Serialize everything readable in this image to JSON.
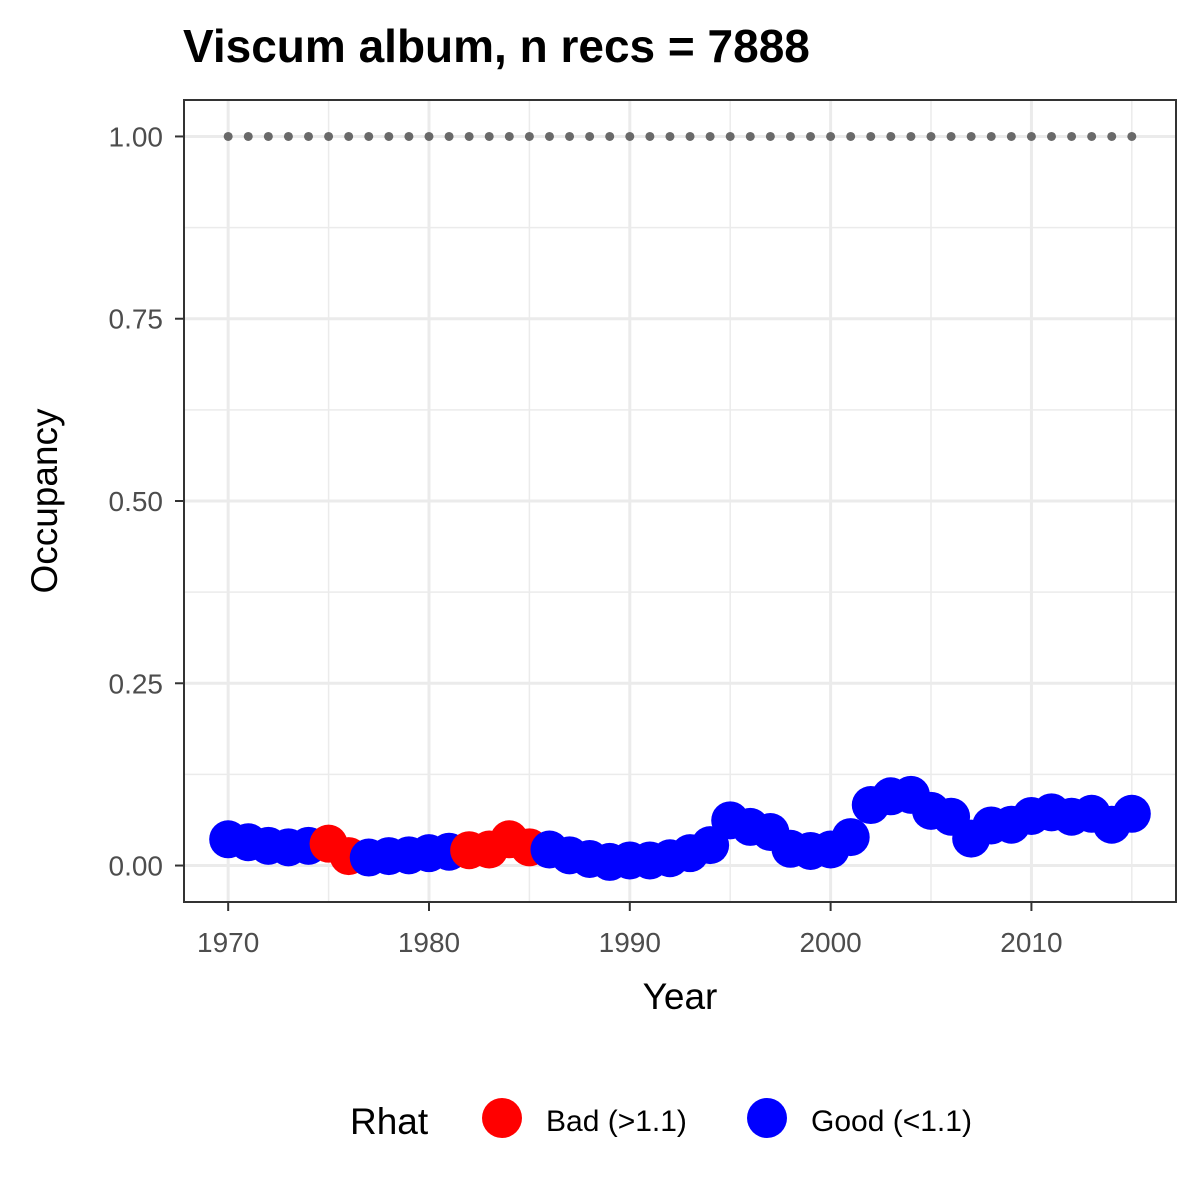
{
  "chart_data": {
    "type": "scatter",
    "title": "Viscum album, n recs = 7888",
    "xlabel": "Year",
    "ylabel": "Occupancy",
    "xlim": [
      1967.8,
      2017.2
    ],
    "ylim": [
      -0.05,
      1.05
    ],
    "x_ticks": [
      1970,
      1980,
      1990,
      2000,
      2010
    ],
    "x_tick_labels": [
      "1970",
      "1980",
      "1990",
      "2000",
      "2010"
    ],
    "y_ticks": [
      0,
      0.25,
      0.5,
      0.75,
      1
    ],
    "y_tick_labels": [
      "0.00",
      "0.25",
      "0.50",
      "0.75",
      "1.00"
    ],
    "grid": true,
    "legend_position": "bottom",
    "legend": {
      "title": "Rhat",
      "entries": [
        {
          "key": "bad",
          "label": "Bad (>1.1)",
          "color": "#ff0000"
        },
        {
          "key": "good",
          "label": "Good (<1.1)",
          "color": "#0000ff"
        }
      ]
    },
    "series": [
      {
        "key": "occupancy",
        "x": [
          1970,
          1971,
          1972,
          1973,
          1974,
          1975,
          1976,
          1977,
          1978,
          1979,
          1980,
          1981,
          1982,
          1983,
          1984,
          1985,
          1986,
          1987,
          1988,
          1989,
          1990,
          1991,
          1992,
          1993,
          1994,
          1995,
          1996,
          1997,
          1998,
          1999,
          2000,
          2001,
          2002,
          2003,
          2004,
          2005,
          2006,
          2007,
          2008,
          2009,
          2010,
          2011,
          2012,
          2013,
          2014,
          2015
        ],
        "y": [
          0.036,
          0.032,
          0.027,
          0.025,
          0.027,
          0.03,
          0.013,
          0.011,
          0.013,
          0.014,
          0.017,
          0.019,
          0.021,
          0.022,
          0.036,
          0.025,
          0.022,
          0.014,
          0.009,
          0.005,
          0.007,
          0.007,
          0.01,
          0.017,
          0.028,
          0.062,
          0.053,
          0.046,
          0.023,
          0.02,
          0.022,
          0.039,
          0.083,
          0.095,
          0.097,
          0.075,
          0.067,
          0.037,
          0.055,
          0.056,
          0.068,
          0.073,
          0.067,
          0.071,
          0.056,
          0.071
        ],
        "rhat": [
          "good",
          "good",
          "good",
          "good",
          "good",
          "bad",
          "bad",
          "good",
          "good",
          "good",
          "good",
          "good",
          "bad",
          "bad",
          "bad",
          "bad",
          "good",
          "good",
          "good",
          "good",
          "good",
          "good",
          "good",
          "good",
          "good",
          "good",
          "good",
          "good",
          "good",
          "good",
          "good",
          "good",
          "good",
          "good",
          "good",
          "good",
          "good",
          "good",
          "good",
          "good",
          "good",
          "good",
          "good",
          "good",
          "good",
          "good"
        ]
      },
      {
        "key": "reference",
        "style": "dotted",
        "color": "#696969",
        "x": [
          1970,
          1971,
          1972,
          1973,
          1974,
          1975,
          1976,
          1977,
          1978,
          1979,
          1980,
          1981,
          1982,
          1983,
          1984,
          1985,
          1986,
          1987,
          1988,
          1989,
          1990,
          1991,
          1992,
          1993,
          1994,
          1995,
          1996,
          1997,
          1998,
          1999,
          2000,
          2001,
          2002,
          2003,
          2004,
          2005,
          2006,
          2007,
          2008,
          2009,
          2010,
          2011,
          2012,
          2013,
          2014,
          2015
        ],
        "y": [
          1,
          1,
          1,
          1,
          1,
          1,
          1,
          1,
          1,
          1,
          1,
          1,
          1,
          1,
          1,
          1,
          1,
          1,
          1,
          1,
          1,
          1,
          1,
          1,
          1,
          1,
          1,
          1,
          1,
          1,
          1,
          1,
          1,
          1,
          1,
          1,
          1,
          1,
          1,
          1,
          1,
          1,
          1,
          1,
          1,
          1
        ]
      }
    ]
  },
  "colors": {
    "panel_border": "#333333",
    "grid": "#ebebeb",
    "tick_text": "#4d4d4d"
  }
}
